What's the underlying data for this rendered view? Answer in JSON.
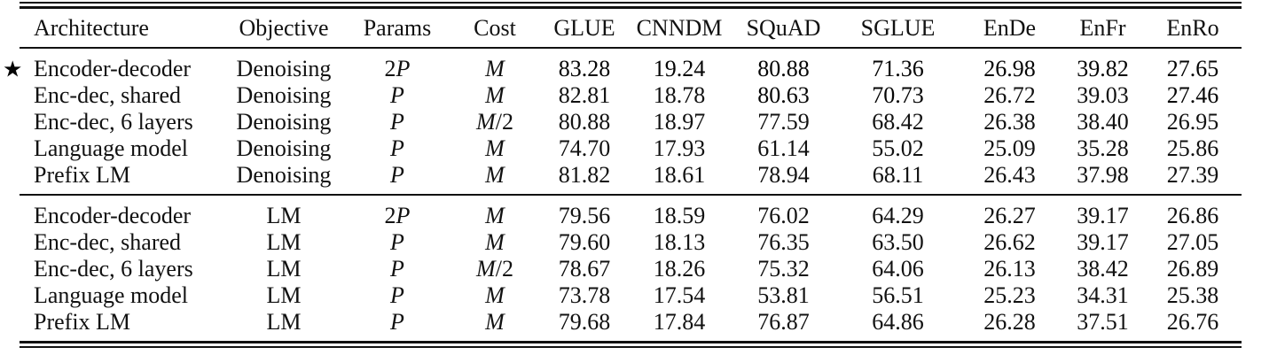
{
  "table": {
    "star_symbol": "★",
    "columns": [
      {
        "key": "architecture",
        "label": "Architecture"
      },
      {
        "key": "objective",
        "label": "Objective"
      },
      {
        "key": "params",
        "label": "Params"
      },
      {
        "key": "cost",
        "label": "Cost"
      },
      {
        "key": "glue",
        "label": "GLUE"
      },
      {
        "key": "cnndm",
        "label": "CNNDM"
      },
      {
        "key": "squad",
        "label": "SQuAD"
      },
      {
        "key": "sglue",
        "label": "SGLUE"
      },
      {
        "key": "ende",
        "label": "EnDe"
      },
      {
        "key": "enfr",
        "label": "EnFr"
      },
      {
        "key": "enro",
        "label": "EnRo"
      }
    ],
    "colors": {
      "text": "#111111",
      "rule": "#111111",
      "background": "#ffffff"
    },
    "sections": [
      {
        "name": "denoising",
        "rows": [
          {
            "starred": true,
            "architecture": "Encoder-decoder",
            "objective": "Denoising",
            "params": "2P",
            "cost": "M",
            "metrics": [
              {
                "value": "83.28",
                "bold": true
              },
              {
                "value": "19.24",
                "bold": true
              },
              {
                "value": "80.88",
                "bold": true
              },
              {
                "value": "71.36",
                "bold": true
              },
              {
                "value": "26.98",
                "bold": true
              },
              {
                "value": "39.82",
                "bold": true
              },
              {
                "value": "27.65",
                "bold": true
              }
            ]
          },
          {
            "starred": false,
            "architecture": "Enc-dec, shared",
            "objective": "Denoising",
            "params": "P",
            "cost": "M",
            "metrics": [
              {
                "value": "82.81",
                "bold": false
              },
              {
                "value": "18.78",
                "bold": false
              },
              {
                "value": "80.63",
                "bold": true
              },
              {
                "value": "70.73",
                "bold": true
              },
              {
                "value": "26.72",
                "bold": false
              },
              {
                "value": "39.03",
                "bold": false
              },
              {
                "value": "27.46",
                "bold": true
              }
            ]
          },
          {
            "starred": false,
            "architecture": "Enc-dec, 6 layers",
            "objective": "Denoising",
            "params": "P",
            "cost": "M/2",
            "metrics": [
              {
                "value": "80.88",
                "bold": false
              },
              {
                "value": "18.97",
                "bold": false
              },
              {
                "value": "77.59",
                "bold": false
              },
              {
                "value": "68.42",
                "bold": false
              },
              {
                "value": "26.38",
                "bold": false
              },
              {
                "value": "38.40",
                "bold": false
              },
              {
                "value": "26.95",
                "bold": false
              }
            ]
          },
          {
            "starred": false,
            "architecture": "Language model",
            "objective": "Denoising",
            "params": "P",
            "cost": "M",
            "metrics": [
              {
                "value": "74.70",
                "bold": false
              },
              {
                "value": "17.93",
                "bold": false
              },
              {
                "value": "61.14",
                "bold": false
              },
              {
                "value": "55.02",
                "bold": false
              },
              {
                "value": "25.09",
                "bold": false
              },
              {
                "value": "35.28",
                "bold": false
              },
              {
                "value": "25.86",
                "bold": false
              }
            ]
          },
          {
            "starred": false,
            "architecture": "Prefix LM",
            "objective": "Denoising",
            "params": "P",
            "cost": "M",
            "metrics": [
              {
                "value": "81.82",
                "bold": false
              },
              {
                "value": "18.61",
                "bold": false
              },
              {
                "value": "78.94",
                "bold": false
              },
              {
                "value": "68.11",
                "bold": false
              },
              {
                "value": "26.43",
                "bold": false
              },
              {
                "value": "37.98",
                "bold": false
              },
              {
                "value": "27.39",
                "bold": false
              }
            ]
          }
        ]
      },
      {
        "name": "lm",
        "rows": [
          {
            "starred": false,
            "architecture": "Encoder-decoder",
            "objective": "LM",
            "params": "2P",
            "cost": "M",
            "metrics": [
              {
                "value": "79.56",
                "bold": false
              },
              {
                "value": "18.59",
                "bold": false
              },
              {
                "value": "76.02",
                "bold": false
              },
              {
                "value": "64.29",
                "bold": false
              },
              {
                "value": "26.27",
                "bold": false
              },
              {
                "value": "39.17",
                "bold": false
              },
              {
                "value": "26.86",
                "bold": false
              }
            ]
          },
          {
            "starred": false,
            "architecture": "Enc-dec, shared",
            "objective": "LM",
            "params": "P",
            "cost": "M",
            "metrics": [
              {
                "value": "79.60",
                "bold": false
              },
              {
                "value": "18.13",
                "bold": false
              },
              {
                "value": "76.35",
                "bold": false
              },
              {
                "value": "63.50",
                "bold": false
              },
              {
                "value": "26.62",
                "bold": false
              },
              {
                "value": "39.17",
                "bold": false
              },
              {
                "value": "27.05",
                "bold": false
              }
            ]
          },
          {
            "starred": false,
            "architecture": "Enc-dec, 6 layers",
            "objective": "LM",
            "params": "P",
            "cost": "M/2",
            "metrics": [
              {
                "value": "78.67",
                "bold": false
              },
              {
                "value": "18.26",
                "bold": false
              },
              {
                "value": "75.32",
                "bold": false
              },
              {
                "value": "64.06",
                "bold": false
              },
              {
                "value": "26.13",
                "bold": false
              },
              {
                "value": "38.42",
                "bold": false
              },
              {
                "value": "26.89",
                "bold": false
              }
            ]
          },
          {
            "starred": false,
            "architecture": "Language model",
            "objective": "LM",
            "params": "P",
            "cost": "M",
            "metrics": [
              {
                "value": "73.78",
                "bold": false
              },
              {
                "value": "17.54",
                "bold": false
              },
              {
                "value": "53.81",
                "bold": false
              },
              {
                "value": "56.51",
                "bold": false
              },
              {
                "value": "25.23",
                "bold": false
              },
              {
                "value": "34.31",
                "bold": false
              },
              {
                "value": "25.38",
                "bold": false
              }
            ]
          },
          {
            "starred": false,
            "architecture": "Prefix LM",
            "objective": "LM",
            "params": "P",
            "cost": "M",
            "metrics": [
              {
                "value": "79.68",
                "bold": false
              },
              {
                "value": "17.84",
                "bold": false
              },
              {
                "value": "76.87",
                "bold": false
              },
              {
                "value": "64.86",
                "bold": false
              },
              {
                "value": "26.28",
                "bold": false
              },
              {
                "value": "37.51",
                "bold": false
              },
              {
                "value": "26.76",
                "bold": false
              }
            ]
          }
        ]
      }
    ]
  }
}
